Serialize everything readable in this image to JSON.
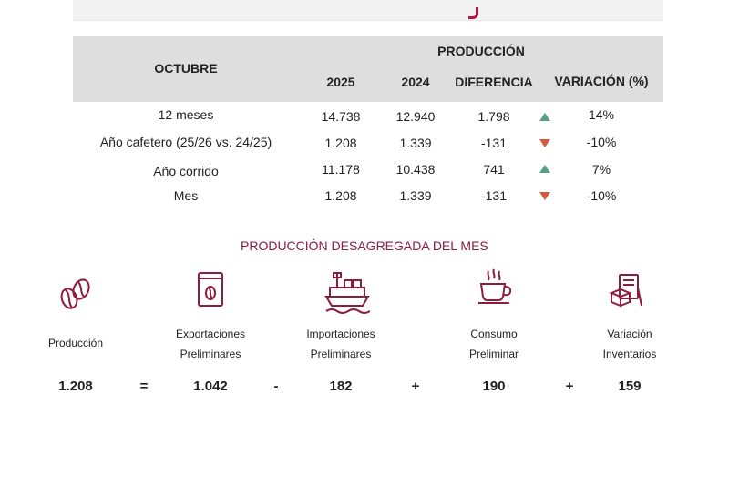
{
  "header": {
    "production": "PRODUCCIÓN",
    "month": "OCTUBRE",
    "col_2025": "2025",
    "col_2024": "2024",
    "col_diff": "DIFERENCIA",
    "col_var": "VARIACIÓN (%)"
  },
  "rows": [
    {
      "label": "12 meses",
      "v2025": "14.738",
      "v2024": "12.940",
      "diff": "1.798",
      "trend": "up",
      "var": "14%"
    },
    {
      "label": "Año cafetero (25/26 vs. 24/25)",
      "v2025": "1.208",
      "v2024": "1.339",
      "diff": "-131",
      "trend": "down",
      "var": "-10%"
    },
    {
      "label": "Año corrido",
      "v2025": "11.178",
      "v2024": "10.438",
      "diff": "741",
      "trend": "up",
      "var": "7%"
    },
    {
      "label": "Mes",
      "v2025": "1.208",
      "v2024": "1.339",
      "diff": "-131",
      "trend": "down",
      "var": "-10%"
    }
  ],
  "breakdown": {
    "title": "PRODUCCIÓN DESAGREGADA DEL MES",
    "items": [
      {
        "icon": "coffee-bean-icon",
        "label1": "Producción",
        "label2": "",
        "value": "1.208"
      },
      {
        "icon": "coffee-bag-icon",
        "label1": "Exportaciones",
        "label2": "Preliminares",
        "value": "1.042"
      },
      {
        "icon": "cargo-ship-icon",
        "label1": "Importaciones",
        "label2": "Preliminares",
        "value": "182"
      },
      {
        "icon": "coffee-cup-icon",
        "label1": "Consumo",
        "label2": "Preliminar",
        "value": "190"
      },
      {
        "icon": "inventory-icon",
        "label1": "Variación",
        "label2": "Inventarios",
        "value": "159"
      }
    ],
    "operators": [
      "=",
      "-",
      "+",
      "+"
    ]
  },
  "colors": {
    "accent": "#8c1d3f",
    "up": "#5a9e80",
    "down": "#d35a3c",
    "header_bg": "#dedede"
  }
}
